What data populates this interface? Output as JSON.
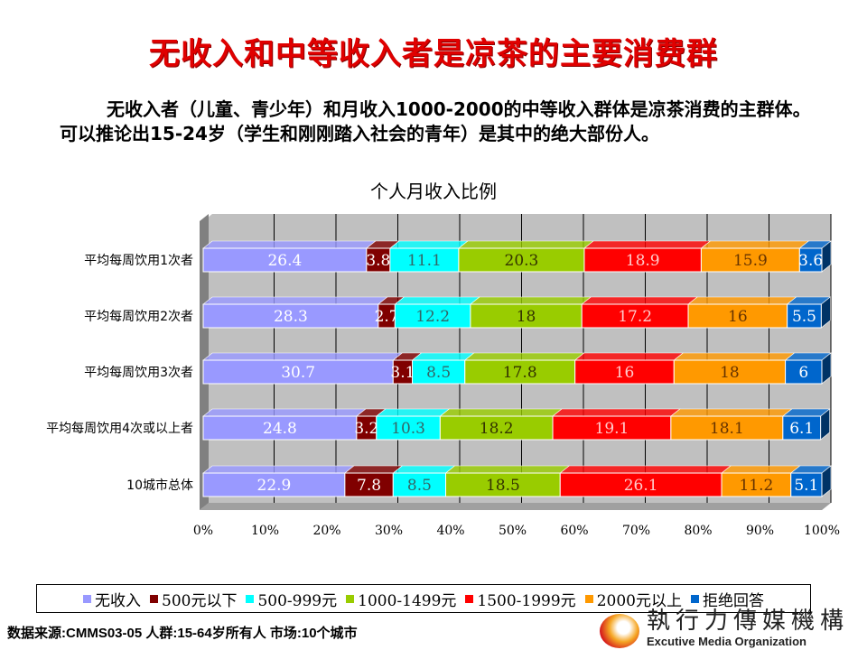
{
  "title": "无收入和中等收入者是凉茶的主要消费群",
  "paragraph": "无收入者（儿童、青少年）和月收入1000-2000的中等收入群体是凉茶消费的主群体。可以推论出15-24岁（学生和刚刚踏入社会的青年）是其中的绝大部份人。",
  "source": "数据来源:CMMS03-05 人群:15-64岁所有人 市场:10个城市",
  "logo": {
    "cn": "執行力傳媒機構",
    "en": "Excutive Media Organization"
  },
  "chart_data": {
    "type": "bar",
    "orientation": "horizontal",
    "stacked": "percent",
    "three_d": true,
    "title": "个人月收入比例",
    "categories": [
      "平均每周饮用1次者",
      "平均每周饮用2次者",
      "平均每周饮用3次者",
      "平均每周饮用4次或以上者",
      "10城市总体"
    ],
    "xlim": [
      0,
      100
    ],
    "xticks": [
      "0%",
      "10%",
      "20%",
      "30%",
      "40%",
      "50%",
      "60%",
      "70%",
      "80%",
      "90%",
      "100%"
    ],
    "grid": true,
    "legend_position": "bottom",
    "series": [
      {
        "name": "无收入",
        "color": "#9999ff",
        "label_color": "#ffffff",
        "values": [
          26.4,
          28.3,
          30.7,
          24.8,
          22.9
        ]
      },
      {
        "name": "500元以下",
        "color": "#800000",
        "label_color": "#ffffff",
        "values": [
          3.8,
          2.7,
          3.1,
          3.2,
          7.8
        ]
      },
      {
        "name": "500-999元",
        "color": "#00ffff",
        "label_color": "#336666",
        "values": [
          11.1,
          12.2,
          8.5,
          10.3,
          8.5
        ]
      },
      {
        "name": "1000-1499元",
        "color": "#99cc00",
        "label_color": "#333300",
        "values": [
          20.3,
          18,
          17.8,
          18.2,
          18.5
        ]
      },
      {
        "name": "1500-1999元",
        "color": "#ff0000",
        "label_color": "#ffcccc",
        "values": [
          18.9,
          17.2,
          16,
          19.1,
          26.1
        ]
      },
      {
        "name": "2000元以上",
        "color": "#ff9900",
        "label_color": "#663300",
        "values": [
          15.9,
          16,
          18,
          18.1,
          11.2
        ]
      },
      {
        "name": "拒绝回答",
        "color": "#0066cc",
        "label_color": "#ffffff",
        "values": [
          3.6,
          5.5,
          6,
          6.1,
          5.1
        ]
      }
    ]
  }
}
